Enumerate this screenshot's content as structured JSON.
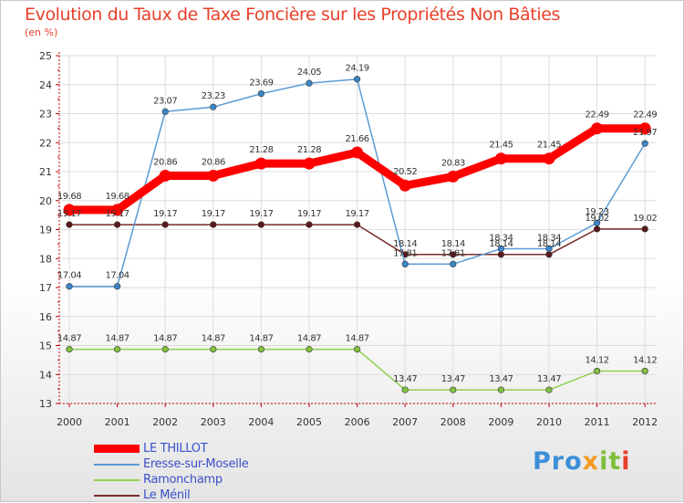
{
  "title": "Evolution du Taux de Taxe Foncière sur les Propriétés Non Bâties",
  "unit": "(en %)",
  "brand": {
    "name": "Proxiti",
    "parts": [
      "Pro",
      "x",
      "it",
      "i"
    ]
  },
  "chart_data": {
    "type": "line",
    "title": "Evolution du Taux de Taxe Foncière sur les Propriétés Non Bâties",
    "ylabel": "(en %)",
    "xlabel": "",
    "ylim": [
      13,
      25
    ],
    "yticks": [
      13,
      14,
      15,
      16,
      17,
      18,
      19,
      20,
      21,
      22,
      23,
      24,
      25
    ],
    "categories": [
      "2000",
      "2001",
      "2002",
      "2003",
      "2004",
      "2005",
      "2006",
      "2007",
      "2008",
      "2009",
      "2010",
      "2011",
      "2012"
    ],
    "legend_position": "bottom-left",
    "series": [
      {
        "name": "LE THILLOT",
        "color": "#ff0000",
        "values": [
          19.68,
          19.68,
          20.86,
          20.86,
          21.28,
          21.28,
          21.66,
          20.52,
          20.83,
          21.45,
          21.45,
          22.49,
          22.49
        ]
      },
      {
        "name": "Eresse-sur-Moselle",
        "color": "#5b9bd5",
        "values": [
          17.04,
          17.04,
          23.07,
          23.23,
          23.69,
          24.05,
          24.19,
          17.81,
          17.81,
          18.34,
          18.34,
          19.23,
          21.97
        ]
      },
      {
        "name": "Ramonchamp",
        "color": "#92d050",
        "values": [
          14.87,
          14.87,
          14.87,
          14.87,
          14.87,
          14.87,
          14.87,
          13.47,
          13.47,
          13.47,
          13.47,
          14.12,
          14.12
        ]
      },
      {
        "name": "Le Ménil",
        "color": "#7b2c2c",
        "values": [
          19.17,
          19.17,
          19.17,
          19.17,
          19.17,
          19.17,
          19.17,
          18.14,
          18.14,
          18.14,
          18.14,
          19.02,
          19.02
        ]
      }
    ]
  }
}
